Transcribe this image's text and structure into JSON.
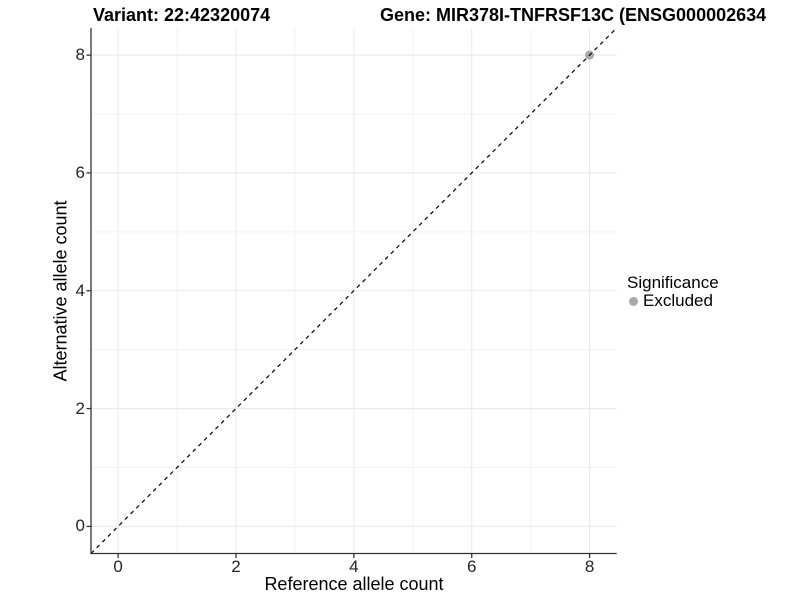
{
  "titles": {
    "variant": "Variant: 22:42320074",
    "gene": "Gene: MIR378I-TNFRSF13C (ENSG000002634"
  },
  "axes": {
    "x_label": "Reference allele count",
    "y_label": "Alternative allele count",
    "x_ticks": [
      "0",
      "2",
      "4",
      "6",
      "8"
    ],
    "y_ticks": [
      "0",
      "2",
      "4",
      "6",
      "8"
    ]
  },
  "legend": {
    "title": "Significance",
    "entries": [
      {
        "label": "Excluded",
        "color": "#aaaaaa"
      }
    ]
  },
  "colors": {
    "background": "#ffffff",
    "axis_line": "#333333",
    "tick_mark": "#333333",
    "grid_major": "#e7e7e7",
    "grid_minor": "#f2f2f2",
    "identity_line": "#000000",
    "point_excluded": "#aaaaaa",
    "tick_text": "#262626",
    "text": "#000000"
  },
  "chart_data": {
    "type": "scatter",
    "title": "Variant: 22:42320074 — Gene: MIR378I-TNFRSF13C (ENSG000002634",
    "xlabel": "Reference allele count",
    "ylabel": "Alternative allele count",
    "xlim": [
      -0.46,
      8.46
    ],
    "ylim": [
      -0.46,
      8.46
    ],
    "xticks": [
      0,
      2,
      4,
      6,
      8
    ],
    "yticks": [
      0,
      2,
      4,
      6,
      8
    ],
    "minor_xticks": [
      1,
      3,
      5,
      7
    ],
    "minor_yticks": [
      1,
      3,
      5,
      7
    ],
    "grid": "major+minor",
    "legend_position": "right",
    "reference_line": {
      "type": "identity",
      "slope": 1,
      "intercept": 0,
      "style": "dashed",
      "color": "#000000"
    },
    "series": [
      {
        "name": "Excluded",
        "color": "#aaaaaa",
        "points": [
          {
            "x": 8,
            "y": 8
          }
        ]
      }
    ]
  }
}
